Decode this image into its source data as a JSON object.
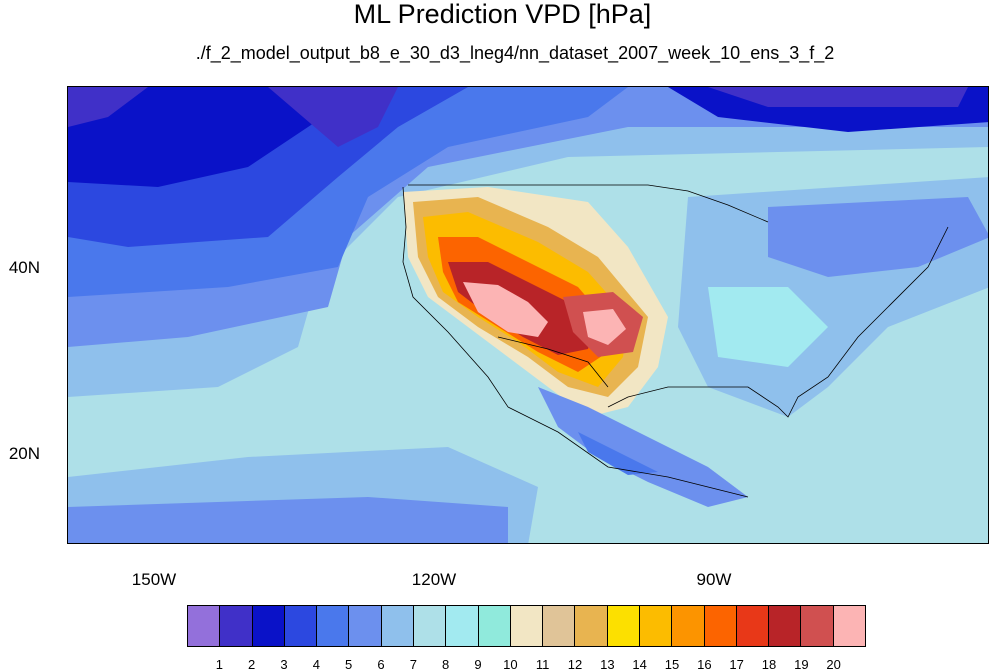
{
  "title": "ML Prediction VPD [hPa]",
  "subtitle": "./f_2_model_output_b8_e_30_d3_lneg4/nn_dataset_2007_week_10_ens_3_f_2",
  "lat_labels": [
    "40N",
    "20N"
  ],
  "lon_labels": [
    "150W",
    "120W",
    "90W"
  ],
  "colorbar": {
    "colors": [
      "#9370db",
      "#4030c8",
      "#0a12c8",
      "#2c48e0",
      "#4a78ec",
      "#6c90ee",
      "#8fc0ec",
      "#aee0e8",
      "#a2eaf0",
      "#90eadc",
      "#f2e6c4",
      "#e0c498",
      "#e8b450",
      "#fce000",
      "#fcbc00",
      "#fc9400",
      "#fc6400",
      "#e83818",
      "#b82428",
      "#d05050",
      "#fcb4b4"
    ],
    "labels": [
      "1",
      "2",
      "3",
      "4",
      "5",
      "6",
      "7",
      "8",
      "9",
      "10",
      "11",
      "12",
      "13",
      "14",
      "15",
      "16",
      "17",
      "18",
      "19",
      "20"
    ]
  }
}
